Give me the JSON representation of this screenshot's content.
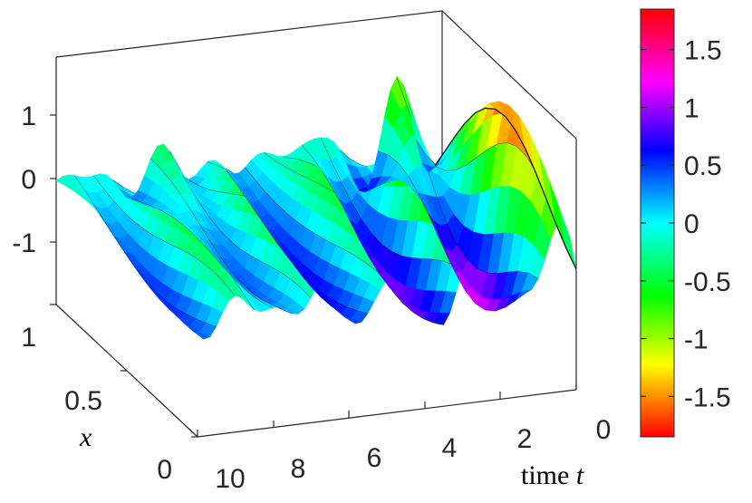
{
  "chart_data": {
    "type": "surface3d",
    "colormap": "hsv",
    "contours": true,
    "x_axis": {
      "label_var": "x",
      "ticks": [
        "0",
        "0.5",
        "1"
      ],
      "lim": [
        0,
        1
      ]
    },
    "t_axis": {
      "label_text": "time",
      "label_var": "t",
      "ticks": [
        "10",
        "8",
        "6",
        "4",
        "2",
        "0"
      ],
      "lim": [
        0,
        10
      ]
    },
    "z_axis": {
      "ticks": [
        "-1",
        "0",
        "1"
      ],
      "lim": [
        -1.9,
        1.9
      ]
    },
    "colorbar": {
      "ticks": [
        "1.5",
        "1",
        "0.5",
        "0",
        "-0.5",
        "-1",
        "-1.5"
      ],
      "lim": [
        -1.85,
        1.85
      ]
    },
    "grid": false
  }
}
